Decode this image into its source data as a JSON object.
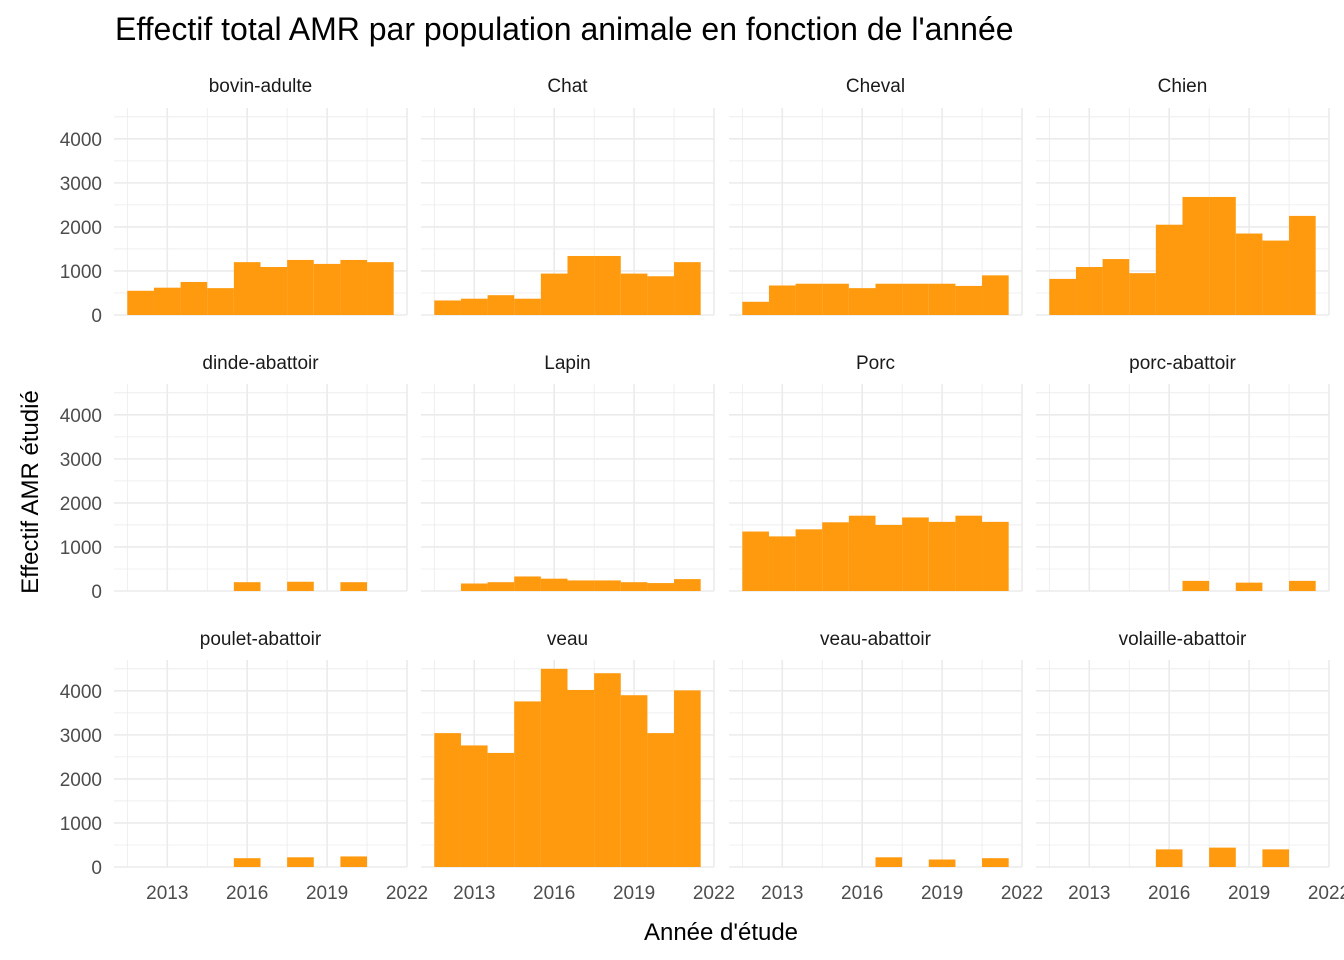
{
  "chart_data": {
    "type": "bar",
    "title": "Effectif total AMR par population animale en fonction de l'année",
    "xlabel": "Année d'étude",
    "ylabel": "Effectif AMR étudié",
    "x_ticks": [
      2013,
      2016,
      2019,
      2022
    ],
    "y_ticks": [
      0,
      1000,
      2000,
      3000,
      4000
    ],
    "ylim": [
      0,
      4700
    ],
    "grid": true,
    "bar_color": "#FF990D",
    "facets": [
      {
        "name": "bovin-adulte",
        "bars": [
          {
            "x": 2012,
            "y": 550
          },
          {
            "x": 2013,
            "y": 620
          },
          {
            "x": 2014,
            "y": 750
          },
          {
            "x": 2015,
            "y": 610
          },
          {
            "x": 2016,
            "y": 1200
          },
          {
            "x": 2017,
            "y": 1090
          },
          {
            "x": 2018,
            "y": 1250
          },
          {
            "x": 2019,
            "y": 1160
          },
          {
            "x": 2020,
            "y": 1250
          },
          {
            "x": 2021,
            "y": 1200
          }
        ]
      },
      {
        "name": "Chat",
        "bars": [
          {
            "x": 2012,
            "y": 330
          },
          {
            "x": 2013,
            "y": 370
          },
          {
            "x": 2014,
            "y": 450
          },
          {
            "x": 2015,
            "y": 370
          },
          {
            "x": 2016,
            "y": 940
          },
          {
            "x": 2017,
            "y": 1340
          },
          {
            "x": 2018,
            "y": 1340
          },
          {
            "x": 2019,
            "y": 940
          },
          {
            "x": 2020,
            "y": 880
          },
          {
            "x": 2021,
            "y": 1200
          }
        ]
      },
      {
        "name": "Cheval",
        "bars": [
          {
            "x": 2012,
            "y": 300
          },
          {
            "x": 2013,
            "y": 670
          },
          {
            "x": 2014,
            "y": 710
          },
          {
            "x": 2015,
            "y": 710
          },
          {
            "x": 2016,
            "y": 610
          },
          {
            "x": 2017,
            "y": 710
          },
          {
            "x": 2018,
            "y": 710
          },
          {
            "x": 2019,
            "y": 710
          },
          {
            "x": 2020,
            "y": 660
          },
          {
            "x": 2021,
            "y": 900
          }
        ]
      },
      {
        "name": "Chien",
        "bars": [
          {
            "x": 2012,
            "y": 820
          },
          {
            "x": 2013,
            "y": 1090
          },
          {
            "x": 2014,
            "y": 1270
          },
          {
            "x": 2015,
            "y": 950
          },
          {
            "x": 2016,
            "y": 2050
          },
          {
            "x": 2017,
            "y": 2680
          },
          {
            "x": 2018,
            "y": 2680
          },
          {
            "x": 2019,
            "y": 1850
          },
          {
            "x": 2020,
            "y": 1690
          },
          {
            "x": 2021,
            "y": 2250
          }
        ]
      },
      {
        "name": "dinde-abattoir",
        "bars": [
          {
            "x": 2016,
            "y": 200
          },
          {
            "x": 2018,
            "y": 210
          },
          {
            "x": 2020,
            "y": 200
          }
        ]
      },
      {
        "name": "Lapin",
        "bars": [
          {
            "x": 2013,
            "y": 170
          },
          {
            "x": 2014,
            "y": 200
          },
          {
            "x": 2015,
            "y": 330
          },
          {
            "x": 2016,
            "y": 280
          },
          {
            "x": 2017,
            "y": 240
          },
          {
            "x": 2018,
            "y": 240
          },
          {
            "x": 2019,
            "y": 200
          },
          {
            "x": 2020,
            "y": 180
          },
          {
            "x": 2021,
            "y": 270
          }
        ]
      },
      {
        "name": "Porc",
        "bars": [
          {
            "x": 2012,
            "y": 1350
          },
          {
            "x": 2013,
            "y": 1240
          },
          {
            "x": 2014,
            "y": 1400
          },
          {
            "x": 2015,
            "y": 1560
          },
          {
            "x": 2016,
            "y": 1710
          },
          {
            "x": 2017,
            "y": 1500
          },
          {
            "x": 2018,
            "y": 1670
          },
          {
            "x": 2019,
            "y": 1570
          },
          {
            "x": 2020,
            "y": 1710
          },
          {
            "x": 2021,
            "y": 1570
          }
        ]
      },
      {
        "name": "porc-abattoir",
        "bars": [
          {
            "x": 2017,
            "y": 230
          },
          {
            "x": 2019,
            "y": 190
          },
          {
            "x": 2021,
            "y": 230
          }
        ]
      },
      {
        "name": "poulet-abattoir",
        "bars": [
          {
            "x": 2016,
            "y": 200
          },
          {
            "x": 2018,
            "y": 220
          },
          {
            "x": 2020,
            "y": 240
          }
        ]
      },
      {
        "name": "veau",
        "bars": [
          {
            "x": 2012,
            "y": 3040
          },
          {
            "x": 2013,
            "y": 2760
          },
          {
            "x": 2014,
            "y": 2590
          },
          {
            "x": 2015,
            "y": 3760
          },
          {
            "x": 2016,
            "y": 4500
          },
          {
            "x": 2017,
            "y": 4020
          },
          {
            "x": 2018,
            "y": 4400
          },
          {
            "x": 2019,
            "y": 3900
          },
          {
            "x": 2020,
            "y": 3040
          },
          {
            "x": 2021,
            "y": 4010
          }
        ]
      },
      {
        "name": "veau-abattoir",
        "bars": [
          {
            "x": 2017,
            "y": 220
          },
          {
            "x": 2019,
            "y": 170
          },
          {
            "x": 2021,
            "y": 200
          }
        ]
      },
      {
        "name": "volaille-abattoir",
        "bars": [
          {
            "x": 2016,
            "y": 400
          },
          {
            "x": 2018,
            "y": 440
          },
          {
            "x": 2020,
            "y": 400
          }
        ]
      }
    ]
  }
}
